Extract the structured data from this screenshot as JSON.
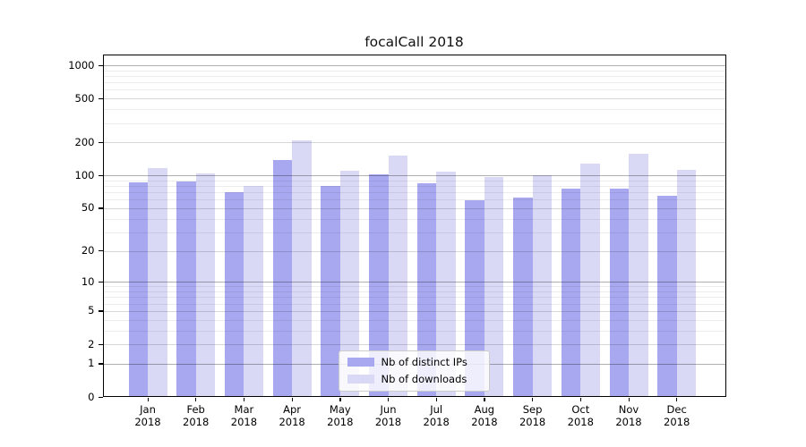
{
  "figure": {
    "title": "focalCall 2018"
  },
  "colors": {
    "distinct_ips": "#a8a8f0",
    "downloads": "#d9d9f6",
    "grid_major": "#b0b0b0",
    "grid_mid": "#d7d7d7",
    "grid_minor": "#ececec",
    "axis": "#000000",
    "legend_border": "#cccccc"
  },
  "chart_data": {
    "type": "bar",
    "title": "focalCall 2018",
    "categories": [
      "Jan",
      "Feb",
      "Mar",
      "Apr",
      "May",
      "Jun",
      "Jul",
      "Aug",
      "Sep",
      "Oct",
      "Nov",
      "Dec"
    ],
    "year_label": "2018",
    "series": [
      {
        "name": "Nb of distinct IPs",
        "values": [
          86,
          88,
          70,
          139,
          80,
          102,
          84,
          59,
          63,
          75,
          76,
          65
        ]
      },
      {
        "name": "Nb of downloads",
        "values": [
          116,
          104,
          80,
          210,
          110,
          151,
          109,
          97,
          101,
          127,
          158,
          112
        ]
      }
    ],
    "yticks": [
      0,
      1,
      2,
      5,
      10,
      20,
      50,
      100,
      200,
      500,
      1000
    ],
    "yscale": "log10(value+1)",
    "ylim": [
      0,
      1263
    ],
    "grid": true,
    "legend_position": "lower center"
  }
}
